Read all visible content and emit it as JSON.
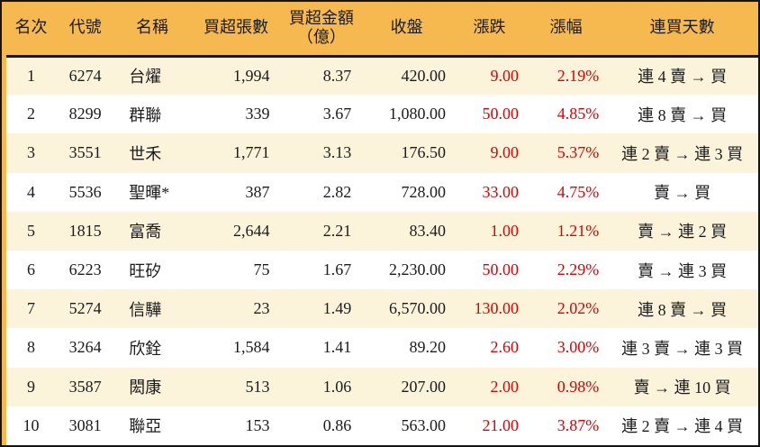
{
  "chart_data": {
    "type": "table",
    "title": "",
    "columns": [
      {
        "key": "rank",
        "label": "名次"
      },
      {
        "key": "code",
        "label": "代號"
      },
      {
        "key": "name",
        "label": "名稱"
      },
      {
        "key": "volume",
        "label": "買超張數"
      },
      {
        "key": "amount",
        "label": "買超金額\n（億）"
      },
      {
        "key": "close",
        "label": "收盤"
      },
      {
        "key": "change",
        "label": "漲跌"
      },
      {
        "key": "change_pct",
        "label": "漲幅"
      },
      {
        "key": "streak",
        "label": "連買天數"
      }
    ],
    "rows": [
      {
        "rank": "1",
        "code": "6274",
        "name": "台燿",
        "volume": "1,994",
        "amount": "8.37",
        "close": "420.00",
        "change": "9.00",
        "change_pct": "2.19%",
        "streak": "連 4 賣 → 買"
      },
      {
        "rank": "2",
        "code": "8299",
        "name": "群聯",
        "volume": "339",
        "amount": "3.67",
        "close": "1,080.00",
        "change": "50.00",
        "change_pct": "4.85%",
        "streak": "連 8 賣 → 買"
      },
      {
        "rank": "3",
        "code": "3551",
        "name": "世禾",
        "volume": "1,771",
        "amount": "3.13",
        "close": "176.50",
        "change": "9.00",
        "change_pct": "5.37%",
        "streak": "連 2 賣 → 連 3 買"
      },
      {
        "rank": "4",
        "code": "5536",
        "name": "聖暉*",
        "volume": "387",
        "amount": "2.82",
        "close": "728.00",
        "change": "33.00",
        "change_pct": "4.75%",
        "streak": "賣 → 買"
      },
      {
        "rank": "5",
        "code": "1815",
        "name": "富喬",
        "volume": "2,644",
        "amount": "2.21",
        "close": "83.40",
        "change": "1.00",
        "change_pct": "1.21%",
        "streak": "賣 → 連 2 買"
      },
      {
        "rank": "6",
        "code": "6223",
        "name": "旺矽",
        "volume": "75",
        "amount": "1.67",
        "close": "2,230.00",
        "change": "50.00",
        "change_pct": "2.29%",
        "streak": "賣 → 連 3 買"
      },
      {
        "rank": "7",
        "code": "5274",
        "name": "信驊",
        "volume": "23",
        "amount": "1.49",
        "close": "6,570.00",
        "change": "130.00",
        "change_pct": "2.02%",
        "streak": "連 8 賣 → 買"
      },
      {
        "rank": "8",
        "code": "3264",
        "name": "欣銓",
        "volume": "1,584",
        "amount": "1.41",
        "close": "89.20",
        "change": "2.60",
        "change_pct": "3.00%",
        "streak": "連 3 賣 → 連 3 買"
      },
      {
        "rank": "9",
        "code": "3587",
        "name": "閎康",
        "volume": "513",
        "amount": "1.06",
        "close": "207.00",
        "change": "2.00",
        "change_pct": "0.98%",
        "streak": "賣 → 連 10 買"
      },
      {
        "rank": "10",
        "code": "3081",
        "name": "聯亞",
        "volume": "153",
        "amount": "0.86",
        "close": "563.00",
        "change": "21.00",
        "change_pct": "3.87%",
        "streak": "連 2 賣 → 連 4 買"
      }
    ],
    "red_columns": [
      "change",
      "change_pct"
    ],
    "layout_hints": {
      "striped_rows": true,
      "header_band_color_key": "header_bg",
      "grid": "none"
    }
  },
  "colors": {
    "header_bg": "#F6B94F",
    "row_bg": "#FFFFFF",
    "row_alt_bg": "#FCF3DB",
    "border": "#141414",
    "text": "#1B1B1B",
    "change_text": "#E00000"
  }
}
